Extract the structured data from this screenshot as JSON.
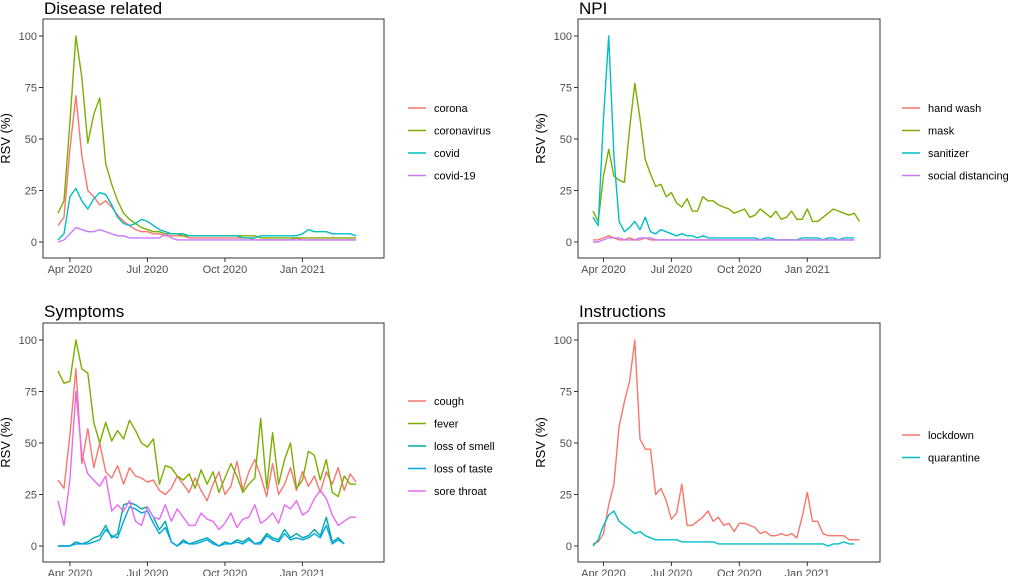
{
  "figure": {
    "y_axis_label": "RSV (%)",
    "y_ticks": [
      0,
      25,
      50,
      75,
      100
    ],
    "x_ticks": [
      {
        "label": "Apr 2020",
        "week": 2
      },
      {
        "label": "Jul 2020",
        "week": 15
      },
      {
        "label": "Oct 2020",
        "week": 28
      },
      {
        "label": "Jan 2021",
        "week": 41
      }
    ]
  },
  "chart_data": [
    {
      "type": "line",
      "title": "Disease related",
      "ylabel": "RSV (%)",
      "ylim": [
        0,
        100
      ],
      "week_start": "2020-03-15",
      "series": [
        {
          "name": "corona",
          "color": "#F8766D",
          "values": [
            8,
            12,
            45,
            71,
            42,
            25,
            22,
            18,
            20,
            17,
            13,
            10,
            8,
            6,
            5,
            5,
            4,
            4,
            3,
            3,
            3,
            3,
            2,
            2,
            2,
            2,
            2,
            2,
            2,
            2,
            2,
            2,
            2,
            1,
            1,
            1,
            1,
            1,
            1,
            1,
            2,
            1,
            1,
            1,
            1,
            1,
            1,
            1,
            1,
            1,
            1
          ]
        },
        {
          "name": "coronavirus",
          "color": "#7CAE00",
          "values": [
            14,
            20,
            58,
            100,
            80,
            48,
            62,
            70,
            38,
            28,
            20,
            14,
            11,
            9,
            7,
            6,
            5,
            5,
            4,
            4,
            4,
            3,
            3,
            3,
            3,
            3,
            3,
            3,
            3,
            3,
            3,
            3,
            3,
            3,
            2,
            2,
            2,
            2,
            2,
            2,
            2,
            2,
            2,
            2,
            2,
            2,
            2,
            2,
            2,
            2,
            2
          ]
        },
        {
          "name": "covid",
          "color": "#00BFC4",
          "values": [
            1,
            4,
            22,
            26,
            20,
            16,
            21,
            24,
            23,
            18,
            12,
            9,
            8,
            9,
            11,
            10,
            8,
            6,
            5,
            4,
            4,
            4,
            3,
            3,
            3,
            3,
            3,
            3,
            3,
            3,
            3,
            2,
            2,
            2,
            3,
            3,
            3,
            3,
            3,
            3,
            3,
            4,
            6,
            5,
            5,
            5,
            4,
            4,
            4,
            4,
            3
          ]
        },
        {
          "name": "covid-19",
          "color": "#C77CFF",
          "values": [
            0,
            1,
            4,
            7,
            6,
            5,
            5,
            6,
            5,
            4,
            3,
            3,
            2,
            2,
            2,
            2,
            2,
            2,
            4,
            2,
            1,
            1,
            1,
            1,
            1,
            1,
            1,
            1,
            1,
            1,
            1,
            1,
            1,
            1,
            1,
            1,
            1,
            1,
            1,
            1,
            1,
            1,
            1,
            1,
            1,
            1,
            1,
            1,
            1,
            1,
            1
          ]
        }
      ]
    },
    {
      "type": "line",
      "title": "NPI",
      "ylabel": "RSV (%)",
      "ylim": [
        0,
        100
      ],
      "week_start": "2020-03-15",
      "series": [
        {
          "name": "hand wash",
          "color": "#F8766D",
          "values": [
            1,
            1,
            2,
            3,
            2,
            1,
            1,
            2,
            1,
            1,
            2,
            1,
            1,
            1,
            1,
            1,
            1,
            1,
            1,
            1,
            1,
            1,
            1,
            1,
            1,
            1,
            1,
            1,
            1,
            1,
            1,
            1,
            1,
            1,
            1,
            1,
            1,
            1,
            1,
            1,
            1,
            1,
            1,
            1,
            1,
            1,
            1,
            1,
            1,
            1,
            1
          ]
        },
        {
          "name": "mask",
          "color": "#7CAE00",
          "values": [
            15,
            10,
            32,
            45,
            32,
            30,
            29,
            55,
            77,
            60,
            40,
            33,
            27,
            28,
            22,
            24,
            19,
            17,
            21,
            15,
            15,
            22,
            20,
            20,
            18,
            17,
            16,
            14,
            15,
            16,
            12,
            13,
            16,
            14,
            12,
            15,
            11,
            12,
            15,
            11,
            11,
            16,
            10,
            10,
            12,
            14,
            16,
            15,
            14,
            13,
            14,
            10
          ]
        },
        {
          "name": "sanitizer",
          "color": "#00BFC4",
          "values": [
            12,
            8,
            60,
            100,
            42,
            10,
            5,
            7,
            10,
            6,
            12,
            5,
            4,
            6,
            5,
            4,
            3,
            4,
            3,
            3,
            2,
            3,
            2,
            2,
            2,
            2,
            2,
            2,
            2,
            2,
            2,
            2,
            1,
            2,
            2,
            1,
            1,
            1,
            1,
            1,
            2,
            2,
            2,
            2,
            1,
            2,
            2,
            1,
            2,
            2,
            2
          ]
        },
        {
          "name": "social distancing",
          "color": "#C77CFF",
          "values": [
            0,
            0,
            1,
            2,
            2,
            2,
            1,
            1,
            1,
            2,
            2,
            2,
            1,
            1,
            1,
            1,
            1,
            1,
            1,
            1,
            1,
            1,
            1,
            1,
            1,
            1,
            1,
            1,
            1,
            1,
            1,
            1,
            1,
            1,
            1,
            1,
            1,
            1,
            1,
            1,
            1,
            1,
            1,
            1,
            1,
            1,
            1,
            1,
            1,
            1,
            1
          ]
        }
      ]
    },
    {
      "type": "line",
      "title": "Symptoms",
      "ylabel": "RSV (%)",
      "ylim": [
        0,
        100
      ],
      "week_start": "2020-03-15",
      "series": [
        {
          "name": "cough",
          "color": "#F8766D",
          "values": [
            32,
            28,
            54,
            86,
            40,
            57,
            38,
            50,
            36,
            33,
            39,
            30,
            38,
            34,
            33,
            31,
            32,
            27,
            25,
            28,
            34,
            30,
            26,
            33,
            27,
            22,
            30,
            36,
            25,
            29,
            41,
            27,
            36,
            42,
            34,
            24,
            40,
            25,
            30,
            38,
            27,
            36,
            29,
            34,
            26,
            36,
            30,
            38,
            27,
            35,
            31
          ]
        },
        {
          "name": "fever",
          "color": "#7CAE00",
          "values": [
            85,
            79,
            80,
            100,
            86,
            84,
            60,
            50,
            60,
            51,
            56,
            52,
            61,
            56,
            50,
            48,
            52,
            30,
            39,
            38,
            34,
            32,
            35,
            28,
            37,
            30,
            36,
            26,
            33,
            40,
            34,
            26,
            30,
            33,
            62,
            28,
            55,
            30,
            42,
            50,
            28,
            32,
            46,
            44,
            32,
            42,
            26,
            24,
            34,
            30,
            30
          ]
        },
        {
          "name": "loss of smell",
          "color": "#00A9A5",
          "values": [
            0,
            0,
            0,
            2,
            1,
            2,
            4,
            5,
            10,
            4,
            6,
            20,
            21,
            20,
            18,
            19,
            14,
            8,
            12,
            2,
            0,
            3,
            1,
            2,
            3,
            4,
            2,
            0,
            2,
            1,
            3,
            2,
            4,
            1,
            2,
            6,
            4,
            3,
            8,
            4,
            6,
            4,
            5,
            8,
            5,
            14,
            2,
            4,
            1
          ]
        },
        {
          "name": "loss of taste",
          "color": "#00A5E8",
          "values": [
            0,
            0,
            0,
            1,
            1,
            1,
            2,
            3,
            8,
            5,
            4,
            12,
            19,
            18,
            16,
            17,
            11,
            6,
            9,
            2,
            0,
            2,
            1,
            1,
            2,
            3,
            1,
            0,
            1,
            1,
            2,
            1,
            3,
            1,
            1,
            5,
            3,
            2,
            6,
            3,
            4,
            3,
            4,
            6,
            4,
            10,
            1,
            3,
            1
          ]
        },
        {
          "name": "sore throat",
          "color": "#E76BF3",
          "values": [
            22,
            10,
            32,
            75,
            45,
            35,
            32,
            29,
            34,
            17,
            20,
            17,
            22,
            12,
            10,
            19,
            14,
            13,
            20,
            12,
            18,
            14,
            10,
            10,
            16,
            13,
            12,
            8,
            11,
            16,
            9,
            13,
            14,
            20,
            11,
            13,
            16,
            11,
            20,
            18,
            22,
            15,
            17,
            23,
            27,
            23,
            15,
            10,
            12,
            14,
            14
          ]
        }
      ]
    },
    {
      "type": "line",
      "title": "Instructions",
      "ylabel": "RSV (%)",
      "ylim": [
        0,
        100
      ],
      "week_start": "2020-03-15",
      "series": [
        {
          "name": "lockdown",
          "color": "#F8766D",
          "values": [
            1,
            2,
            6,
            20,
            30,
            58,
            70,
            80,
            100,
            52,
            47,
            47,
            25,
            28,
            22,
            13,
            16,
            30,
            10,
            10,
            12,
            14,
            17,
            12,
            14,
            10,
            11,
            7,
            11,
            11,
            10,
            9,
            6,
            7,
            5,
            5,
            6,
            5,
            6,
            4,
            14,
            26,
            12,
            12,
            6,
            5,
            5,
            5,
            5,
            3,
            3,
            3
          ]
        },
        {
          "name": "quarantine",
          "color": "#00BFC4",
          "values": [
            0,
            3,
            10,
            15,
            17,
            12,
            10,
            8,
            6,
            7,
            5,
            4,
            3,
            3,
            3,
            3,
            3,
            2,
            2,
            2,
            2,
            2,
            2,
            2,
            1,
            1,
            1,
            1,
            1,
            1,
            1,
            1,
            1,
            1,
            1,
            1,
            1,
            1,
            1,
            1,
            1,
            1,
            1,
            1,
            1,
            0,
            1,
            1,
            2,
            1,
            1
          ]
        }
      ]
    }
  ]
}
